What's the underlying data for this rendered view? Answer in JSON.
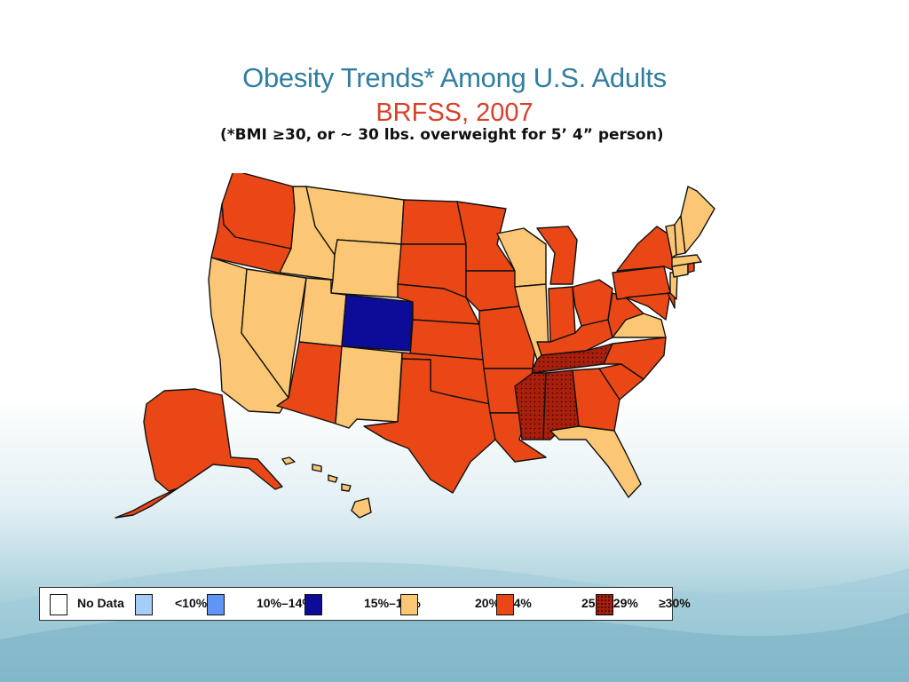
{
  "slide": {
    "title": "Obesity Trends* Among U.S. Adults",
    "subtitle": "BRFSS, 2007",
    "note": "(*BMI ≥30, or ~ 30 lbs. overweight for 5’ 4” person)"
  },
  "colors": {
    "no_data": "#ffffff",
    "lt10": "#a4cef5",
    "r10_14": "#5f95f5",
    "r15_19": "#0c0c99",
    "r20_24": "#fbc774",
    "r25_29": "#ea4717",
    "r30_plus": "#a81f0c"
  },
  "legend": [
    {
      "label": "No Data",
      "color": "#ffffff"
    },
    {
      "label": "<10%",
      "color": "#a4cef5"
    },
    {
      "label": "10%–14%",
      "color": "#5f95f5"
    },
    {
      "label": "15%–19%",
      "color": "#0c0c99"
    },
    {
      "label": "20%–24%",
      "color": "#fbc774"
    },
    {
      "label": "25%–29%",
      "color": "#ea4717"
    },
    {
      "label": "≥30%",
      "color": "#a81f0c"
    }
  ],
  "state_categories": {
    "20-24": [
      "California",
      "Nevada",
      "Idaho",
      "Montana",
      "Wyoming",
      "Utah",
      "New Mexico",
      "Illinois",
      "Wisconsin",
      "Virginia",
      "Florida",
      "Maine",
      "Vermont",
      "New Hampshire",
      "Massachusetts",
      "Connecticut",
      "New Jersey",
      "Hawaii"
    ],
    "15-19": [
      "Colorado"
    ],
    "25-29": [
      "Washington",
      "Oregon",
      "Arizona",
      "Texas",
      "Oklahoma",
      "Kansas",
      "Nebraska",
      "South Dakota",
      "North Dakota",
      "Minnesota",
      "Iowa",
      "Missouri",
      "Arkansas",
      "Louisiana",
      "Michigan",
      "Indiana",
      "Ohio",
      "Kentucky",
      "West Virginia",
      "Pennsylvania",
      "New York",
      "North Carolina",
      "South Carolina",
      "Georgia",
      "Maryland",
      "Delaware",
      "Rhode Island",
      "Alaska"
    ],
    "30+": [
      "Tennessee",
      "Mississippi",
      "Alabama"
    ]
  }
}
